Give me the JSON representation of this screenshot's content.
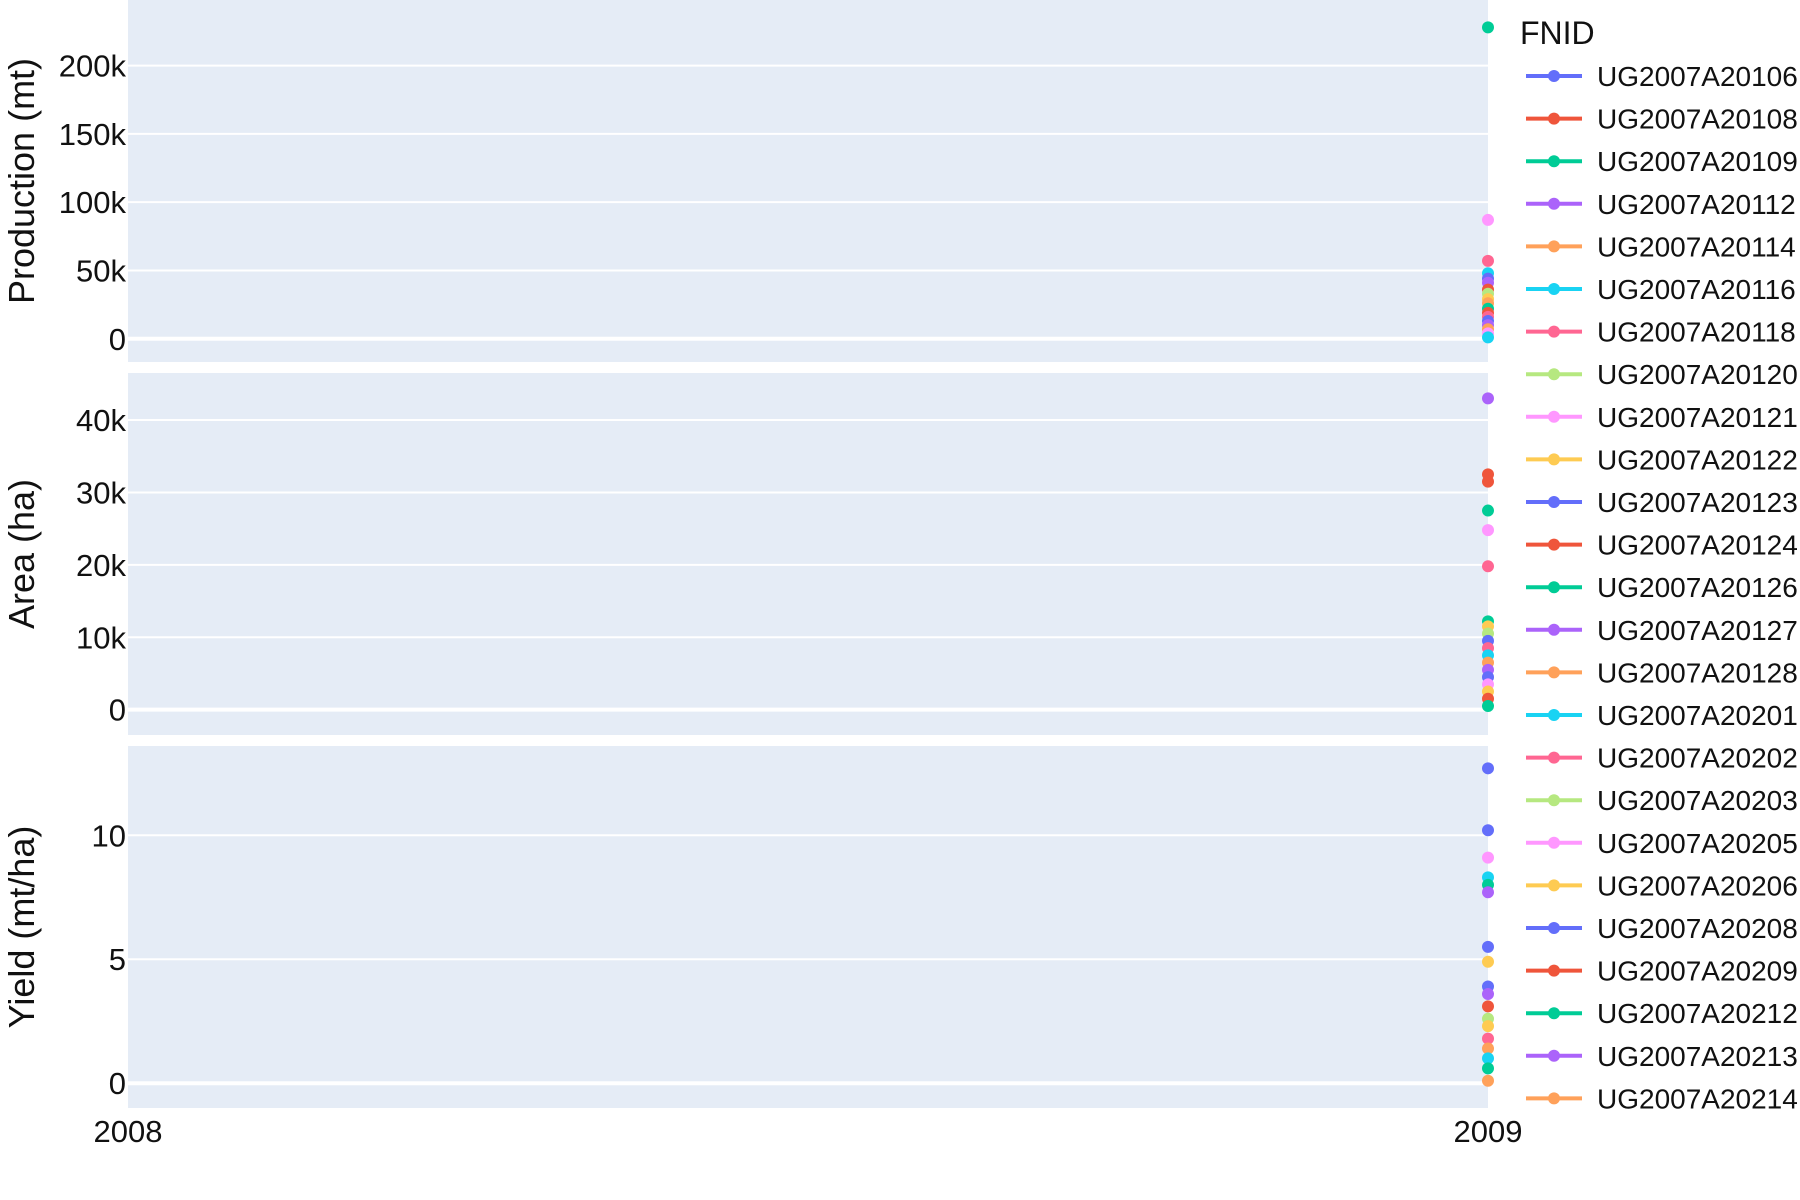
{
  "chart_data": {
    "type": "scatter",
    "x_ticks": [
      "2008",
      "2009"
    ],
    "x_range": [
      2008,
      2009
    ],
    "legend": {
      "title": "FNID",
      "placement": "right",
      "entries": [
        {
          "name": "UG2007A20106",
          "color": "#636efa"
        },
        {
          "name": "UG2007A20108",
          "color": "#ef553b"
        },
        {
          "name": "UG2007A20109",
          "color": "#00cc96"
        },
        {
          "name": "UG2007A20112",
          "color": "#ab63fa"
        },
        {
          "name": "UG2007A20114",
          "color": "#ffa15a"
        },
        {
          "name": "UG2007A20116",
          "color": "#19d3f3"
        },
        {
          "name": "UG2007A20118",
          "color": "#ff6692"
        },
        {
          "name": "UG2007A20120",
          "color": "#b6e880"
        },
        {
          "name": "UG2007A20121",
          "color": "#ff97ff"
        },
        {
          "name": "UG2007A20122",
          "color": "#fecb52"
        },
        {
          "name": "UG2007A20123",
          "color": "#636efa"
        },
        {
          "name": "UG2007A20124",
          "color": "#ef553b"
        },
        {
          "name": "UG2007A20126",
          "color": "#00cc96"
        },
        {
          "name": "UG2007A20127",
          "color": "#ab63fa"
        },
        {
          "name": "UG2007A20128",
          "color": "#ffa15a"
        },
        {
          "name": "UG2007A20201",
          "color": "#19d3f3"
        },
        {
          "name": "UG2007A20202",
          "color": "#ff6692"
        },
        {
          "name": "UG2007A20203",
          "color": "#b6e880"
        },
        {
          "name": "UG2007A20205",
          "color": "#ff97ff"
        },
        {
          "name": "UG2007A20206",
          "color": "#fecb52"
        },
        {
          "name": "UG2007A20208",
          "color": "#636efa"
        },
        {
          "name": "UG2007A20209",
          "color": "#ef553b"
        },
        {
          "name": "UG2007A20212",
          "color": "#00cc96"
        },
        {
          "name": "UG2007A20213",
          "color": "#ab63fa"
        },
        {
          "name": "UG2007A20214",
          "color": "#ffa15a"
        }
      ]
    },
    "grid": true,
    "background_color": "#e5ecf6",
    "panels": [
      {
        "ylabel": "Production (mt)",
        "ylim": [
          -17000,
          248000
        ],
        "yticks": [
          0,
          50000,
          100000,
          150000,
          200000
        ],
        "ytick_labels": [
          "0",
          "50k",
          "100k",
          "150k",
          "200k"
        ],
        "points": [
          {
            "x": 2009,
            "y": 228000,
            "color": "#00cc96"
          },
          {
            "x": 2009,
            "y": 87000,
            "color": "#ff97ff"
          },
          {
            "x": 2009,
            "y": 57000,
            "color": "#ff6692"
          },
          {
            "x": 2009,
            "y": 48000,
            "color": "#19d3f3"
          },
          {
            "x": 2009,
            "y": 44000,
            "color": "#636efa"
          },
          {
            "x": 2009,
            "y": 41000,
            "color": "#ab63fa"
          },
          {
            "x": 2009,
            "y": 36000,
            "color": "#ef553b"
          },
          {
            "x": 2009,
            "y": 33000,
            "color": "#b6e880"
          },
          {
            "x": 2009,
            "y": 29000,
            "color": "#fecb52"
          },
          {
            "x": 2009,
            "y": 26000,
            "color": "#ffa15a"
          },
          {
            "x": 2009,
            "y": 22000,
            "color": "#00cc96"
          },
          {
            "x": 2009,
            "y": 19000,
            "color": "#ef553b"
          },
          {
            "x": 2009,
            "y": 16000,
            "color": "#ff6692"
          },
          {
            "x": 2009,
            "y": 13000,
            "color": "#636efa"
          },
          {
            "x": 2009,
            "y": 10000,
            "color": "#ab63fa"
          },
          {
            "x": 2009,
            "y": 7000,
            "color": "#ffa15a"
          },
          {
            "x": 2009,
            "y": 4000,
            "color": "#ff97ff"
          },
          {
            "x": 2009,
            "y": 1000,
            "color": "#19d3f3"
          }
        ]
      },
      {
        "ylabel": "Area (ha)",
        "ylim": [
          -3500,
          46500
        ],
        "yticks": [
          0,
          10000,
          20000,
          30000,
          40000
        ],
        "ytick_labels": [
          "0",
          "10k",
          "20k",
          "30k",
          "40k"
        ],
        "points": [
          {
            "x": 2009,
            "y": 43000,
            "color": "#ab63fa"
          },
          {
            "x": 2009,
            "y": 32500,
            "color": "#ef553b"
          },
          {
            "x": 2009,
            "y": 31500,
            "color": "#ef553b"
          },
          {
            "x": 2009,
            "y": 27500,
            "color": "#00cc96"
          },
          {
            "x": 2009,
            "y": 24800,
            "color": "#ff97ff"
          },
          {
            "x": 2009,
            "y": 19800,
            "color": "#ff6692"
          },
          {
            "x": 2009,
            "y": 12200,
            "color": "#00cc96"
          },
          {
            "x": 2009,
            "y": 11500,
            "color": "#fecb52"
          },
          {
            "x": 2009,
            "y": 10500,
            "color": "#b6e880"
          },
          {
            "x": 2009,
            "y": 9500,
            "color": "#636efa"
          },
          {
            "x": 2009,
            "y": 8500,
            "color": "#ff6692"
          },
          {
            "x": 2009,
            "y": 7500,
            "color": "#19d3f3"
          },
          {
            "x": 2009,
            "y": 6500,
            "color": "#ffa15a"
          },
          {
            "x": 2009,
            "y": 5500,
            "color": "#ab63fa"
          },
          {
            "x": 2009,
            "y": 4500,
            "color": "#636efa"
          },
          {
            "x": 2009,
            "y": 3500,
            "color": "#ff97ff"
          },
          {
            "x": 2009,
            "y": 2500,
            "color": "#fecb52"
          },
          {
            "x": 2009,
            "y": 1500,
            "color": "#ef553b"
          },
          {
            "x": 2009,
            "y": 500,
            "color": "#00cc96"
          }
        ]
      },
      {
        "ylabel": "Yield (mt/ha)",
        "ylim": [
          -1,
          13.6
        ],
        "yticks": [
          0,
          5,
          10
        ],
        "ytick_labels": [
          "0",
          "5",
          "10"
        ],
        "points": [
          {
            "x": 2009,
            "y": 12.7,
            "color": "#636efa"
          },
          {
            "x": 2009,
            "y": 10.2,
            "color": "#636efa"
          },
          {
            "x": 2009,
            "y": 9.1,
            "color": "#ff97ff"
          },
          {
            "x": 2009,
            "y": 8.3,
            "color": "#19d3f3"
          },
          {
            "x": 2009,
            "y": 8.0,
            "color": "#00cc96"
          },
          {
            "x": 2009,
            "y": 7.7,
            "color": "#ab63fa"
          },
          {
            "x": 2009,
            "y": 5.5,
            "color": "#636efa"
          },
          {
            "x": 2009,
            "y": 4.9,
            "color": "#fecb52"
          },
          {
            "x": 2009,
            "y": 3.9,
            "color": "#636efa"
          },
          {
            "x": 2009,
            "y": 3.6,
            "color": "#ab63fa"
          },
          {
            "x": 2009,
            "y": 3.1,
            "color": "#ef553b"
          },
          {
            "x": 2009,
            "y": 2.6,
            "color": "#b6e880"
          },
          {
            "x": 2009,
            "y": 2.3,
            "color": "#fecb52"
          },
          {
            "x": 2009,
            "y": 1.8,
            "color": "#ff6692"
          },
          {
            "x": 2009,
            "y": 1.4,
            "color": "#ffa15a"
          },
          {
            "x": 2009,
            "y": 1.0,
            "color": "#19d3f3"
          },
          {
            "x": 2009,
            "y": 0.6,
            "color": "#00cc96"
          },
          {
            "x": 2009,
            "y": 0.1,
            "color": "#ffa15a"
          }
        ]
      }
    ]
  }
}
